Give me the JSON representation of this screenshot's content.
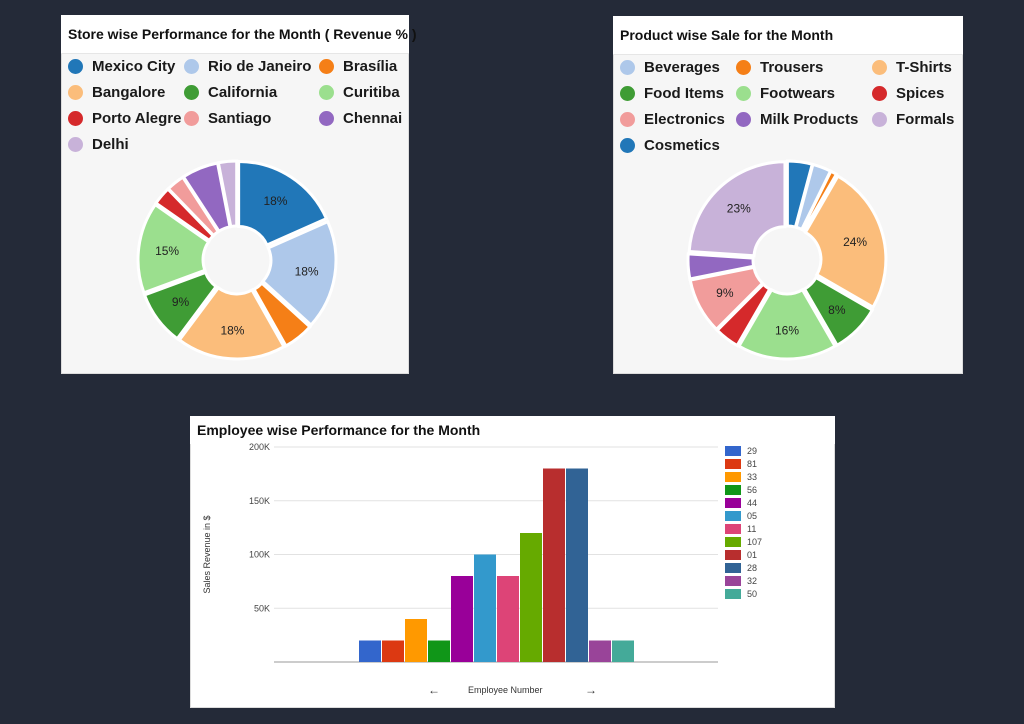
{
  "store_panel": {
    "title": "Store wise Performance for the Month ( Revenue % )"
  },
  "product_panel": {
    "title": "Product wise Sale for the Month"
  },
  "employee_panel": {
    "title": "Employee wise Performance for the Month",
    "nav_prev": "←",
    "nav_next": "→"
  },
  "chart_data": [
    {
      "type": "pie",
      "style": "donut",
      "title": "Store wise Performance for the Month ( Revenue % )",
      "legend_position": "top",
      "categories": [
        "Mexico City",
        "Rio de Janeiro",
        "Brasília",
        "Bangalore",
        "California",
        "Curitiba",
        "Porto Alegre",
        "Santiago",
        "Chennai",
        "Delhi"
      ],
      "values": [
        18,
        18,
        5,
        18,
        9,
        15,
        3,
        3,
        6,
        3
      ],
      "labels": [
        "18%",
        "18%",
        "",
        "18%",
        "9%",
        "15%",
        "",
        "",
        "",
        ""
      ],
      "colors": [
        "#2177b8",
        "#aec8ea",
        "#f57f17",
        "#fbbd7b",
        "#3f9c35",
        "#9bdf8e",
        "#d5292b",
        "#f19c9b",
        "#9268c1",
        "#c8b2d9"
      ]
    },
    {
      "type": "pie",
      "style": "donut",
      "title": "Product wise Sale for the Month",
      "legend_position": "top",
      "categories": [
        "Cosmetics",
        "Beverages",
        "Trousers",
        "T-Shirts",
        "Food Items",
        "Footwears",
        "Spices",
        "Electronics",
        "Milk Products",
        "Formals"
      ],
      "values": [
        4,
        3,
        1,
        24,
        8,
        16,
        4,
        9,
        4,
        23
      ],
      "labels": [
        "",
        "",
        "",
        "24%",
        "8%",
        "16%",
        "",
        "9%",
        "",
        "23%"
      ],
      "colors": [
        "#2177b8",
        "#aec8ea",
        "#f57f17",
        "#fbbd7b",
        "#3f9c35",
        "#9bdf8e",
        "#d5292b",
        "#f19c9b",
        "#9268c1",
        "#c8b2d9"
      ],
      "legend_order": [
        "Beverages",
        "Trousers",
        "T-Shirts",
        "Food Items",
        "Footwears",
        "Spices",
        "Electronics",
        "Milk Products",
        "Formals",
        "Cosmetics"
      ]
    },
    {
      "type": "bar",
      "title": "Employee wise Performance for the Month",
      "xlabel": "Employee Number",
      "ylabel": "Sales Revenue in $",
      "ylim": [
        0,
        200000
      ],
      "yticks": [
        "50K",
        "100K",
        "150K",
        "200K"
      ],
      "ytick_values": [
        50000,
        100000,
        150000,
        200000
      ],
      "grid": true,
      "legend_position": "right",
      "categories": [
        "29",
        "81",
        "33",
        "56",
        "44",
        "05",
        "11",
        "107",
        "01",
        "28",
        "32",
        "50"
      ],
      "values": [
        20000,
        20000,
        40000,
        20000,
        80000,
        100000,
        80000,
        120000,
        180000,
        180000,
        20000,
        20000
      ],
      "colors": [
        "#3366cc",
        "#dc3912",
        "#ff9900",
        "#109618",
        "#990099",
        "#3399cc",
        "#dd4477",
        "#66aa00",
        "#b82e2e",
        "#316395",
        "#994499",
        "#44aa99"
      ]
    }
  ]
}
